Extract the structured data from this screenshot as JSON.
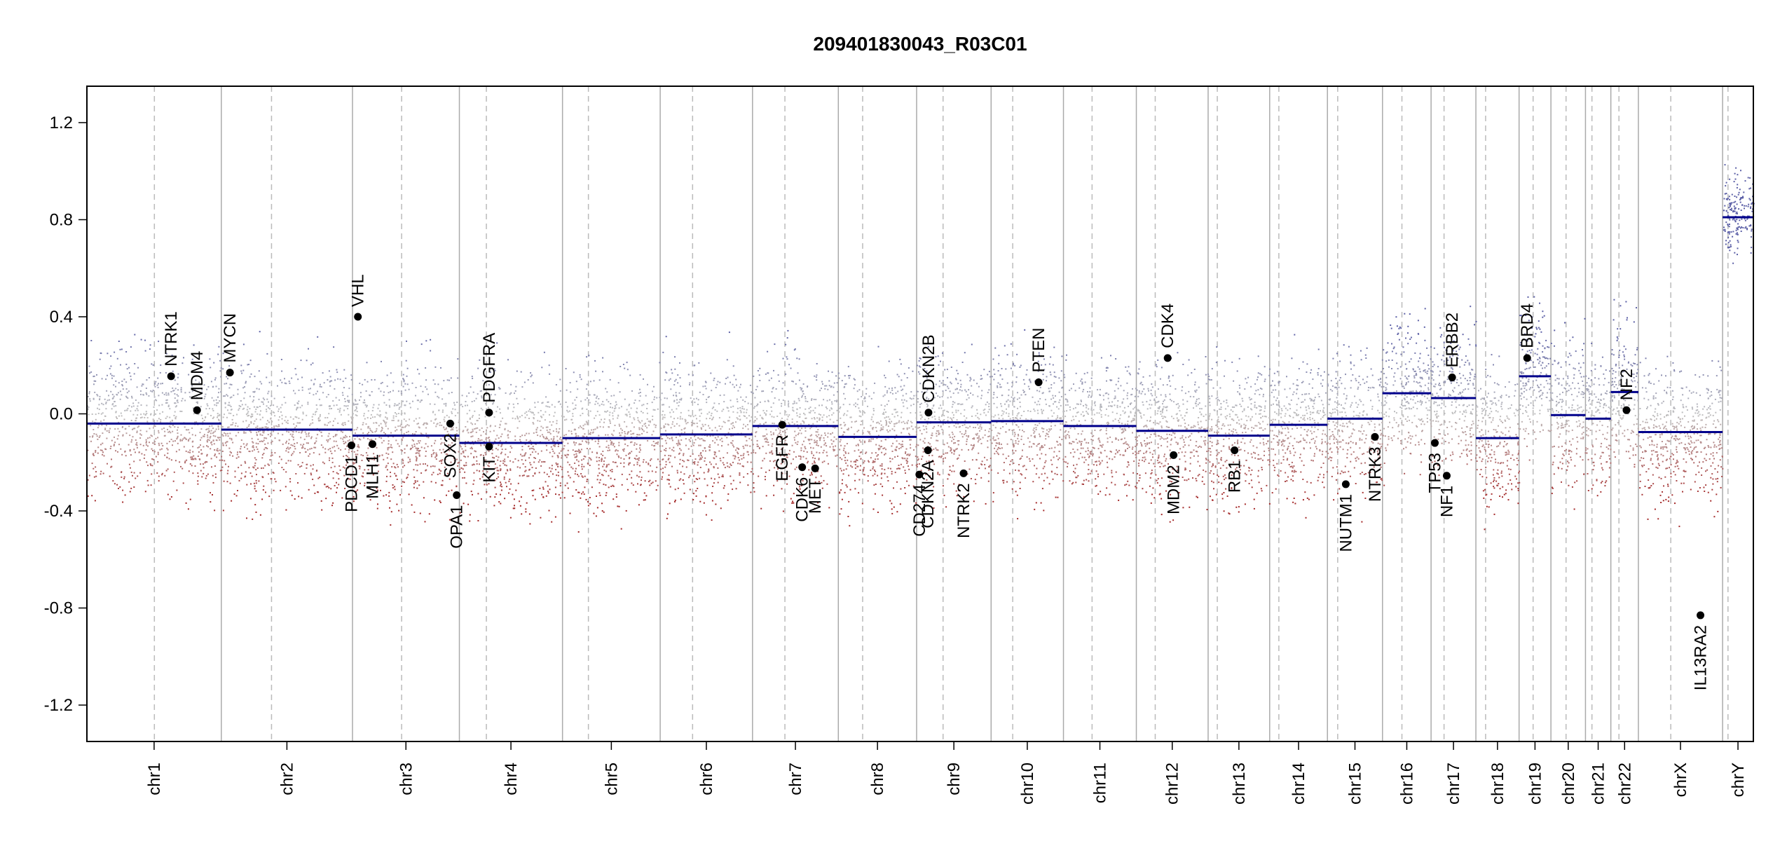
{
  "chart_data": {
    "type": "scatter",
    "title": "209401830043_R03C01",
    "xlabel": "",
    "ylabel": "",
    "ylim": [
      -1.35,
      1.35
    ],
    "y_ticks": [
      "1.2",
      "0.8",
      "0.4",
      "0.0",
      "-0.4",
      "-0.8",
      "-1.2"
    ],
    "y_tick_values": [
      1.2,
      0.8,
      0.4,
      0.0,
      -0.4,
      -0.8,
      -1.2
    ],
    "grid": false,
    "colors": {
      "gain": "#5b5fa6",
      "loss": "#a52a2a",
      "neutral": "#bfbfbf",
      "segment": "#00008b",
      "gene": "#000000",
      "boundary": "#aaaaaa",
      "centromere": "#bbbbbb"
    },
    "chromosomes": [
      {
        "name": "chr1",
        "size": 249,
        "centro": 125,
        "segment": -0.04
      },
      {
        "name": "chr2",
        "size": 243,
        "centro": 93,
        "segment": -0.065
      },
      {
        "name": "chr3",
        "size": 198,
        "centro": 91,
        "segment": -0.09
      },
      {
        "name": "chr4",
        "size": 191,
        "centro": 50,
        "segment": -0.12
      },
      {
        "name": "chr5",
        "size": 181,
        "centro": 48,
        "segment": -0.1
      },
      {
        "name": "chr6",
        "size": 171,
        "centro": 60,
        "segment": -0.085
      },
      {
        "name": "chr7",
        "size": 159,
        "centro": 60,
        "segment": -0.05
      },
      {
        "name": "chr8",
        "size": 145,
        "centro": 45,
        "segment": -0.095
      },
      {
        "name": "chr9",
        "size": 138,
        "centro": 49,
        "segment": -0.035
      },
      {
        "name": "chr10",
        "size": 134,
        "centro": 40,
        "segment": -0.03
      },
      {
        "name": "chr11",
        "size": 135,
        "centro": 53,
        "segment": -0.05
      },
      {
        "name": "chr12",
        "size": 133,
        "centro": 35,
        "segment": -0.07
      },
      {
        "name": "chr13",
        "size": 114,
        "centro": 17,
        "segment": -0.09
      },
      {
        "name": "chr14",
        "size": 107,
        "centro": 17,
        "segment": -0.045
      },
      {
        "name": "chr15",
        "size": 102,
        "centro": 19,
        "segment": -0.02
      },
      {
        "name": "chr16",
        "size": 90,
        "centro": 36,
        "segment": 0.085
      },
      {
        "name": "chr17",
        "size": 83,
        "centro": 24,
        "segment": 0.065
      },
      {
        "name": "chr18",
        "size": 80,
        "centro": 18,
        "segment": -0.1
      },
      {
        "name": "chr19",
        "size": 59,
        "centro": 26,
        "segment": 0.155
      },
      {
        "name": "chr20",
        "size": 64,
        "centro": 28,
        "segment": -0.005
      },
      {
        "name": "chr21",
        "size": 47,
        "centro": 12,
        "segment": -0.02
      },
      {
        "name": "chr22",
        "size": 51,
        "centro": 15,
        "segment": 0.09
      },
      {
        "name": "chrX",
        "size": 156,
        "centro": 60,
        "segment": -0.075
      },
      {
        "name": "chrY",
        "size": 57,
        "centro": 10,
        "segment": 0.81
      }
    ],
    "genes": [
      {
        "name": "NTRK1",
        "chr": "chr1",
        "pos": 156,
        "value": 0.155
      },
      {
        "name": "MDM4",
        "chr": "chr1",
        "pos": 204,
        "value": 0.015
      },
      {
        "name": "MYCN",
        "chr": "chr2",
        "pos": 16,
        "value": 0.17
      },
      {
        "name": "VHL",
        "chr": "chr3",
        "pos": 10,
        "value": 0.4
      },
      {
        "name": "PDCD1",
        "chr": "chr2",
        "pos": 241,
        "value": -0.13
      },
      {
        "name": "MLH1",
        "chr": "chr3",
        "pos": 37,
        "value": -0.125
      },
      {
        "name": "SOX2",
        "chr": "chr3",
        "pos": 181,
        "value": -0.04
      },
      {
        "name": "OPA1",
        "chr": "chr3",
        "pos": 193,
        "value": -0.335
      },
      {
        "name": "KIT",
        "chr": "chr4",
        "pos": 55,
        "value": -0.135
      },
      {
        "name": "PDGFRA",
        "chr": "chr4",
        "pos": 55,
        "value": 0.005
      },
      {
        "name": "EGFR",
        "chr": "chr7",
        "pos": 55,
        "value": -0.045
      },
      {
        "name": "CDK6",
        "chr": "chr7",
        "pos": 92,
        "value": -0.22
      },
      {
        "name": "MET",
        "chr": "chr7",
        "pos": 116,
        "value": -0.225
      },
      {
        "name": "CDKN2B",
        "chr": "chr9",
        "pos": 22,
        "value": 0.005
      },
      {
        "name": "CDKN2A",
        "chr": "chr9",
        "pos": 21,
        "value": -0.15
      },
      {
        "name": "CD274",
        "chr": "chr9",
        "pos": 5,
        "value": -0.25
      },
      {
        "name": "NTRK2",
        "chr": "chr9",
        "pos": 87,
        "value": -0.245
      },
      {
        "name": "PTEN",
        "chr": "chr10",
        "pos": 88,
        "value": 0.13
      },
      {
        "name": "CDK4",
        "chr": "chr12",
        "pos": 58,
        "value": 0.23
      },
      {
        "name": "MDM2",
        "chr": "chr12",
        "pos": 69,
        "value": -0.17
      },
      {
        "name": "RB1",
        "chr": "chr13",
        "pos": 49,
        "value": -0.15
      },
      {
        "name": "NUTM1",
        "chr": "chr15",
        "pos": 34,
        "value": -0.29
      },
      {
        "name": "NTRK3",
        "chr": "chr15",
        "pos": 88,
        "value": -0.095
      },
      {
        "name": "TP53",
        "chr": "chr17",
        "pos": 7,
        "value": -0.12
      },
      {
        "name": "NF1",
        "chr": "chr17",
        "pos": 29,
        "value": -0.255
      },
      {
        "name": "ERBB2",
        "chr": "chr17",
        "pos": 39,
        "value": 0.15
      },
      {
        "name": "BRD4",
        "chr": "chr19",
        "pos": 15,
        "value": 0.23
      },
      {
        "name": "NF2",
        "chr": "chr22",
        "pos": 29,
        "value": 0.015
      },
      {
        "name": "IL13RA2",
        "chr": "chrX",
        "pos": 115,
        "value": -0.83
      }
    ]
  }
}
